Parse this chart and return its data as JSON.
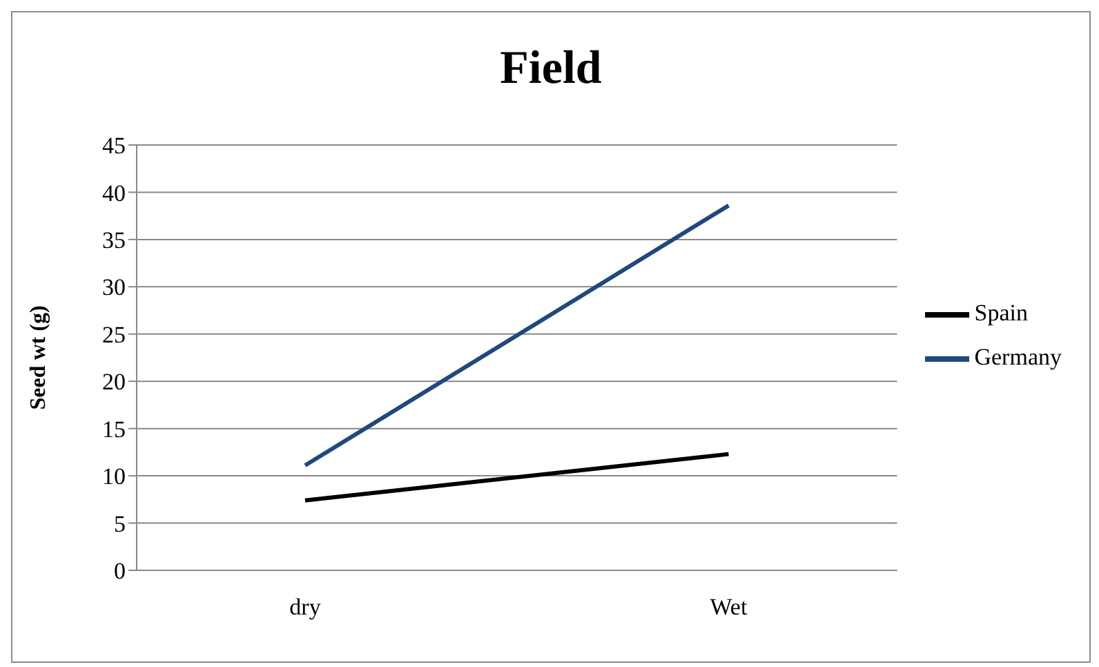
{
  "chart_data": {
    "type": "line",
    "title": "Field",
    "ylabel": "Seed wt (g)",
    "categories": [
      "dry",
      "Wet"
    ],
    "series": [
      {
        "name": "Spain",
        "color": "#000000",
        "values": [
          7.4,
          12.3
        ]
      },
      {
        "name": "Germany",
        "color": "#1f497d",
        "values": [
          11.1,
          38.6
        ]
      }
    ],
    "ylim": [
      0,
      45
    ],
    "yticks": [
      0,
      5,
      10,
      15,
      20,
      25,
      30,
      35,
      40,
      45
    ],
    "grid": "y",
    "legend": "right",
    "marker": "none",
    "line_style": "solid"
  }
}
